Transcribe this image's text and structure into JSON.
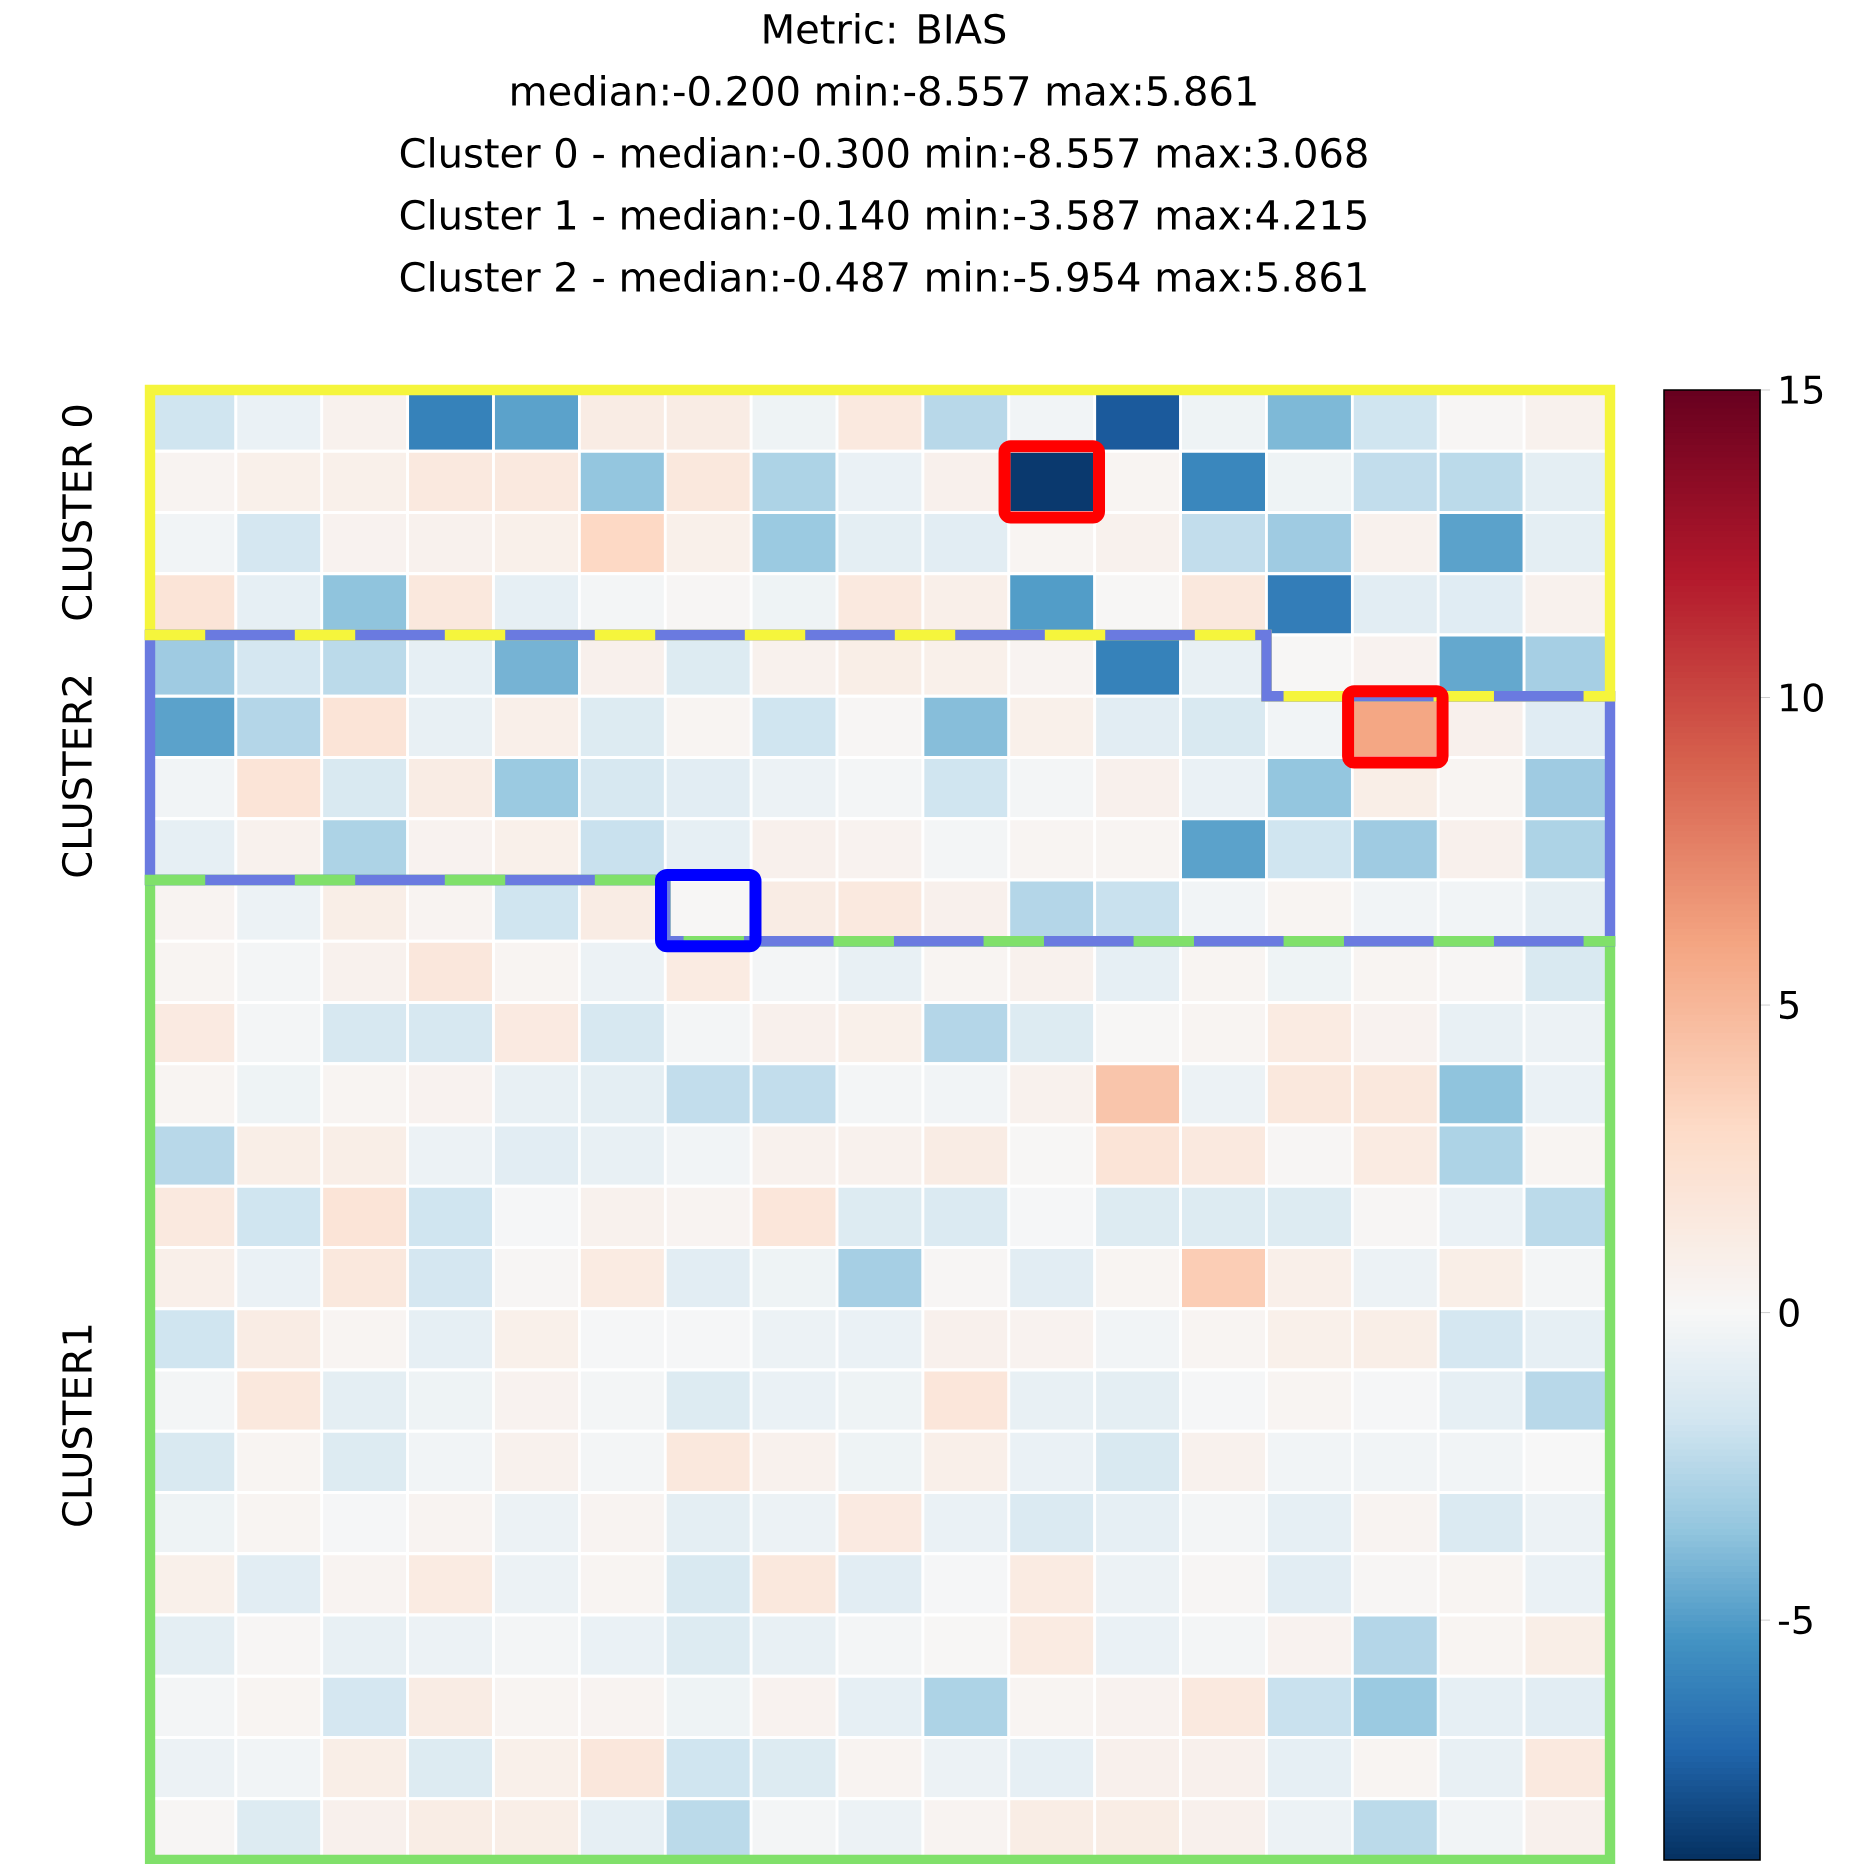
{
  "chart_data": {
    "type": "heatmap",
    "title": "Metric: BIAS",
    "subtitle": "median:-0.200 min:-8.557 max:5.861",
    "annotations": [
      "Cluster 0 - median:-0.300 min:-8.557 max:3.068",
      "Cluster 1 - median:-0.140 min:-3.587 max:4.215",
      "Cluster 2 - median:-0.487 min:-5.954 max:5.861",
      "CLUSTER 0",
      "CLUSTER2",
      "CLUSTER1"
    ],
    "categories": [
      null,
      null,
      null,
      null,
      null,
      null,
      null,
      null,
      null,
      null,
      null,
      null,
      null,
      null,
      null,
      null,
      null
    ],
    "y_categories": [
      null,
      null,
      null,
      null,
      null,
      null,
      null,
      null,
      null,
      null,
      null,
      null,
      null,
      null,
      null,
      null,
      null,
      null,
      null,
      null,
      null,
      null,
      null,
      null
    ],
    "clim": [
      -8.9,
      15
    ],
    "cticks": [
      -5,
      0,
      5,
      10,
      15
    ],
    "cells": [
      [
        -1.8,
        -0.6,
        0.6,
        -6.0,
        -4.8,
        1.2,
        1.2,
        -0.4,
        1.5,
        -2.5,
        -0.3,
        -7.5,
        -0.4,
        -4.0,
        -1.8,
        0.2,
        0.6
      ],
      [
        0.4,
        0.8,
        0.8,
        1.5,
        1.5,
        -3.5,
        1.6,
        -2.8,
        -0.6,
        0.7,
        -8.6,
        0.3,
        -5.8,
        -0.4,
        -2.2,
        -2.4,
        -0.9
      ],
      [
        -0.3,
        -1.6,
        0.5,
        0.6,
        0.8,
        3.1,
        0.8,
        -3.3,
        -0.9,
        -1.0,
        0.3,
        0.6,
        -2.2,
        -3.2,
        0.6,
        -4.8,
        -0.9
      ],
      [
        2.0,
        -0.8,
        -3.6,
        1.6,
        -0.8,
        -0.2,
        0.2,
        -0.4,
        1.5,
        0.9,
        -5.0,
        0.1,
        1.6,
        -6.2,
        -1.0,
        -1.1,
        0.6
      ],
      [
        -3.2,
        -1.6,
        -2.4,
        -0.8,
        -4.2,
        0.7,
        -1.2,
        0.6,
        1.0,
        0.8,
        0.4,
        -6.0,
        -0.7,
        0.1,
        0.5,
        -4.6,
        -3.0
      ],
      [
        -4.8,
        -2.6,
        2.0,
        -0.7,
        0.9,
        -1.2,
        0.3,
        -1.8,
        0.2,
        -3.8,
        0.8,
        -1.0,
        -1.4,
        -0.3,
        5.9,
        0.7,
        -1.1
      ],
      [
        -0.3,
        2.0,
        -1.4,
        1.2,
        -3.3,
        -1.5,
        -1.0,
        -0.5,
        -0.2,
        -1.8,
        -0.2,
        0.7,
        -0.6,
        -3.5,
        1.0,
        0.3,
        -3.2
      ],
      [
        -0.8,
        0.6,
        -2.8,
        0.5,
        0.8,
        -2.0,
        -0.8,
        0.7,
        0.5,
        -0.2,
        0.3,
        0.3,
        -4.8,
        -1.8,
        -3.2,
        0.7,
        -2.8
      ],
      [
        0.4,
        -0.5,
        1.0,
        0.4,
        -1.8,
        1.2,
        0.1,
        1.2,
        1.5,
        0.7,
        -2.6,
        -2.0,
        -0.3,
        0.3,
        -0.3,
        -0.3,
        -0.9
      ],
      [
        0.3,
        -0.2,
        0.6,
        1.7,
        0.3,
        -0.5,
        1.3,
        -0.2,
        -0.7,
        0.3,
        0.6,
        -0.8,
        0.3,
        -0.4,
        0.3,
        0.2,
        -1.4
      ],
      [
        1.4,
        -0.2,
        -1.5,
        -1.5,
        1.4,
        -1.5,
        -0.2,
        0.7,
        0.8,
        -2.6,
        -1.2,
        0.1,
        0.3,
        1.3,
        0.5,
        -0.7,
        -0.5
      ],
      [
        0.3,
        -0.4,
        0.3,
        0.5,
        -0.7,
        -0.9,
        -2.2,
        -2.2,
        -0.2,
        -0.3,
        0.6,
        4.2,
        -0.5,
        1.6,
        1.6,
        -3.6,
        -0.6
      ],
      [
        -2.5,
        1.0,
        1.0,
        -0.5,
        -1.0,
        -0.7,
        -0.3,
        0.6,
        0.6,
        1.2,
        0.1,
        2.0,
        1.5,
        0.2,
        1.3,
        -2.8,
        0.3
      ],
      [
        1.5,
        -1.8,
        2.0,
        -1.8,
        -0.1,
        0.6,
        0.4,
        1.8,
        -1.2,
        -1.3,
        -0.1,
        -1.2,
        -1.2,
        -1.2,
        0.2,
        -0.6,
        -2.4
      ],
      [
        0.9,
        -0.6,
        1.6,
        -1.6,
        0.2,
        1.3,
        -1.0,
        -0.4,
        -3.0,
        0.2,
        -1.0,
        0.3,
        3.8,
        0.9,
        -0.5,
        1.0,
        -0.2
      ],
      [
        -1.8,
        1.2,
        0.3,
        -0.8,
        0.8,
        -0.1,
        -0.1,
        -0.5,
        -0.6,
        0.7,
        0.5,
        -0.3,
        0.3,
        0.8,
        1.0,
        -1.6,
        -0.8
      ],
      [
        -0.2,
        1.6,
        -0.9,
        -0.4,
        0.5,
        -0.2,
        -1.2,
        -0.6,
        -0.4,
        1.8,
        -0.7,
        -0.9,
        -0.1,
        0.3,
        -0.1,
        -0.8,
        -2.5
      ],
      [
        -1.4,
        0.3,
        -1.2,
        -0.3,
        0.6,
        -0.2,
        1.6,
        0.6,
        -0.4,
        0.9,
        -0.6,
        -1.4,
        0.6,
        -0.3,
        -0.3,
        -0.3,
        0.0
      ],
      [
        -0.4,
        0.3,
        -0.1,
        0.4,
        -0.5,
        0.4,
        -0.9,
        -0.5,
        1.4,
        -0.6,
        -1.3,
        -0.8,
        -0.2,
        -0.8,
        0.4,
        -1.3,
        -0.5
      ],
      [
        0.8,
        -1.0,
        0.4,
        1.3,
        -0.5,
        0.3,
        -1.4,
        1.6,
        -1.0,
        -0.1,
        1.3,
        -0.5,
        0.2,
        -1.0,
        0.2,
        0.3,
        -0.6
      ],
      [
        -0.9,
        0.2,
        -0.7,
        -0.5,
        -0.2,
        -0.6,
        -1.2,
        -0.7,
        -0.2,
        0.1,
        1.3,
        -0.6,
        -0.2,
        0.5,
        -2.6,
        0.3,
        1.0
      ],
      [
        -0.2,
        0.3,
        -1.6,
        1.2,
        0.3,
        0.4,
        -0.4,
        0.5,
        -0.8,
        -2.8,
        0.3,
        0.5,
        1.5,
        -2.0,
        -3.3,
        -0.8,
        -1.0
      ],
      [
        -0.5,
        -0.3,
        1.0,
        -1.2,
        0.8,
        1.7,
        -1.8,
        -1.2,
        0.4,
        -0.5,
        -0.8,
        0.7,
        0.7,
        -0.8,
        0.3,
        -0.7,
        1.5
      ],
      [
        0.2,
        -1.2,
        0.7,
        1.1,
        1.0,
        -0.8,
        -2.4,
        -0.2,
        -0.5,
        0.4,
        1.1,
        1.1,
        0.7,
        -0.5,
        -2.4,
        -0.3,
        0.7
      ]
    ]
  }
}
